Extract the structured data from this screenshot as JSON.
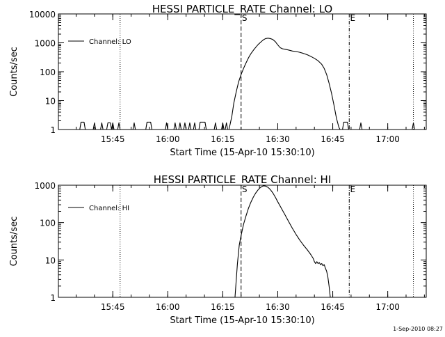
{
  "chart_data": [
    {
      "type": "line",
      "title": "HESSI PARTICLE_RATE Channel: LO",
      "xlabel": "Start Time (15-Apr-10 15:30:10)",
      "ylabel": "Counts/sec",
      "y_scale": "log",
      "xlim": [
        "15:30:10",
        "17:10:30"
      ],
      "ylim": [
        1,
        10000
      ],
      "x_ticks": [
        "15:45",
        "16:00",
        "16:15",
        "16:30",
        "16:45",
        "17:00"
      ],
      "y_ticks": [
        "1",
        "10",
        "100",
        "1000",
        "10000"
      ],
      "legend": "top-left",
      "markers": [
        {
          "label": "",
          "time": "15:47:00",
          "style": "dotted"
        },
        {
          "label": "S",
          "time": "16:20:00",
          "style": "dashed"
        },
        {
          "label": "E",
          "time": "16:49:30",
          "style": "dash-dot"
        },
        {
          "label": "",
          "time": "17:07:00",
          "style": "dotted"
        }
      ],
      "series": [
        {
          "name": "Channel: LO",
          "points": [
            [
              "15:30:10",
              1
            ],
            [
              "15:36:00",
              1
            ],
            [
              "15:36:20",
              1.8
            ],
            [
              "15:37:10",
              1.8
            ],
            [
              "15:37:30",
              1
            ],
            [
              "15:39:40",
              1
            ],
            [
              "15:40:00",
              1.7
            ],
            [
              "15:40:20",
              1
            ],
            [
              "15:41:40",
              1
            ],
            [
              "15:42:00",
              1.7
            ],
            [
              "15:42:20",
              1
            ],
            [
              "15:43:20",
              1
            ],
            [
              "15:43:40",
              1.7
            ],
            [
              "15:44:20",
              1.7
            ],
            [
              "15:44:40",
              1
            ],
            [
              "15:45:00",
              1.7
            ],
            [
              "15:45:20",
              1
            ],
            [
              "15:46:20",
              1
            ],
            [
              "15:46:40",
              1.7
            ],
            [
              "15:47:00",
              1
            ],
            [
              "15:50:30",
              1
            ],
            [
              "15:50:50",
              1.7
            ],
            [
              "15:51:10",
              1
            ],
            [
              "15:54:00",
              1
            ],
            [
              "15:54:20",
              1.8
            ],
            [
              "15:55:20",
              1.8
            ],
            [
              "15:55:40",
              1
            ],
            [
              "15:59:20",
              1
            ],
            [
              "15:59:40",
              1.7
            ],
            [
              "16:00:00",
              1
            ],
            [
              "16:01:40",
              1
            ],
            [
              "16:02:00",
              1.7
            ],
            [
              "16:02:20",
              1
            ],
            [
              "16:03:00",
              1
            ],
            [
              "16:03:20",
              1.7
            ],
            [
              "16:03:40",
              1
            ],
            [
              "16:04:20",
              1
            ],
            [
              "16:04:40",
              1.7
            ],
            [
              "16:05:00",
              1
            ],
            [
              "16:05:40",
              1
            ],
            [
              "16:06:00",
              1.7
            ],
            [
              "16:06:20",
              1
            ],
            [
              "16:07:00",
              1
            ],
            [
              "16:07:20",
              1.7
            ],
            [
              "16:07:40",
              1
            ],
            [
              "16:08:30",
              1
            ],
            [
              "16:08:50",
              1.8
            ],
            [
              "16:10:10",
              1.8
            ],
            [
              "16:10:30",
              1
            ],
            [
              "16:12:40",
              1
            ],
            [
              "16:13:00",
              1.7
            ],
            [
              "16:13:20",
              1
            ],
            [
              "16:14:40",
              1
            ],
            [
              "16:15:00",
              1.7
            ],
            [
              "16:15:20",
              1
            ],
            [
              "16:15:40",
              1
            ],
            [
              "16:16:00",
              1.7
            ],
            [
              "16:16:20",
              1
            ],
            [
              "16:16:40",
              1
            ],
            [
              "16:17:00",
              1.5
            ],
            [
              "16:17:30",
              3
            ],
            [
              "16:18:00",
              8
            ],
            [
              "16:18:40",
              20
            ],
            [
              "16:19:20",
              45
            ],
            [
              "16:20:00",
              80
            ],
            [
              "16:20:40",
              130
            ],
            [
              "16:21:20",
              200
            ],
            [
              "16:22:00",
              300
            ],
            [
              "16:22:40",
              420
            ],
            [
              "16:23:20",
              550
            ],
            [
              "16:24:00",
              700
            ],
            [
              "16:24:40",
              880
            ],
            [
              "16:25:20",
              1050
            ],
            [
              "16:26:00",
              1250
            ],
            [
              "16:26:40",
              1400
            ],
            [
              "16:27:20",
              1450
            ],
            [
              "16:28:00",
              1400
            ],
            [
              "16:28:40",
              1300
            ],
            [
              "16:29:20",
              1100
            ],
            [
              "16:30:00",
              850
            ],
            [
              "16:30:40",
              680
            ],
            [
              "16:31:20",
              620
            ],
            [
              "16:32:00",
              600
            ],
            [
              "16:33:00",
              560
            ],
            [
              "16:34:00",
              520
            ],
            [
              "16:35:00",
              500
            ],
            [
              "16:36:00",
              470
            ],
            [
              "16:37:00",
              430
            ],
            [
              "16:38:00",
              390
            ],
            [
              "16:39:00",
              340
            ],
            [
              "16:40:00",
              290
            ],
            [
              "16:41:00",
              240
            ],
            [
              "16:42:00",
              180
            ],
            [
              "16:42:40",
              130
            ],
            [
              "16:43:20",
              80
            ],
            [
              "16:44:00",
              40
            ],
            [
              "16:44:40",
              18
            ],
            [
              "16:45:20",
              7
            ],
            [
              "16:46:00",
              2.5
            ],
            [
              "16:46:40",
              1.2
            ],
            [
              "16:47:00",
              1
            ],
            [
              "16:47:40",
              1
            ],
            [
              "16:48:00",
              1.8
            ],
            [
              "16:49:00",
              1.8
            ],
            [
              "16:49:20",
              1
            ],
            [
              "16:52:20",
              1
            ],
            [
              "16:52:40",
              1.7
            ],
            [
              "16:53:00",
              1
            ],
            [
              "17:06:40",
              1
            ],
            [
              "17:07:00",
              1.7
            ],
            [
              "17:07:20",
              1
            ],
            [
              "17:10:30",
              1
            ]
          ]
        }
      ]
    },
    {
      "type": "line",
      "title": "HESSI PARTICLE_RATE Channel: HI",
      "xlabel": "Start Time (15-Apr-10 15:30:10)",
      "ylabel": "Counts/sec",
      "y_scale": "log",
      "xlim": [
        "15:30:10",
        "17:10:30"
      ],
      "ylim": [
        1,
        1000
      ],
      "x_ticks": [
        "15:45",
        "16:00",
        "16:15",
        "16:30",
        "16:45",
        "17:00"
      ],
      "y_ticks": [
        "1",
        "10",
        "100",
        "1000"
      ],
      "legend": "top-left",
      "markers": [
        {
          "label": "",
          "time": "15:47:00",
          "style": "dotted"
        },
        {
          "label": "S",
          "time": "16:20:00",
          "style": "dashed"
        },
        {
          "label": "E",
          "time": "16:49:30",
          "style": "dash-dot"
        },
        {
          "label": "",
          "time": "17:07:00",
          "style": "dotted"
        }
      ],
      "series": [
        {
          "name": "Channel: HI",
          "points": [
            [
              "16:18:20",
              1
            ],
            [
              "16:19:00",
              8
            ],
            [
              "16:19:30",
              25
            ],
            [
              "16:20:00",
              45
            ],
            [
              "16:20:40",
              90
            ],
            [
              "16:21:20",
              150
            ],
            [
              "16:22:00",
              240
            ],
            [
              "16:22:40",
              350
            ],
            [
              "16:23:20",
              480
            ],
            [
              "16:24:00",
              620
            ],
            [
              "16:24:40",
              760
            ],
            [
              "16:25:20",
              880
            ],
            [
              "16:26:00",
              960
            ],
            [
              "16:26:40",
              950
            ],
            [
              "16:27:20",
              880
            ],
            [
              "16:28:00",
              760
            ],
            [
              "16:28:40",
              620
            ],
            [
              "16:29:20",
              480
            ],
            [
              "16:30:00",
              360
            ],
            [
              "16:31:00",
              240
            ],
            [
              "16:32:00",
              160
            ],
            [
              "16:33:00",
              105
            ],
            [
              "16:34:00",
              70
            ],
            [
              "16:35:00",
              48
            ],
            [
              "16:36:00",
              34
            ],
            [
              "16:37:00",
              25
            ],
            [
              "16:38:00",
              19
            ],
            [
              "16:39:00",
              14
            ],
            [
              "16:39:40",
              11
            ],
            [
              "16:40:00",
              9
            ],
            [
              "16:40:20",
              8
            ],
            [
              "16:40:40",
              9
            ],
            [
              "16:41:00",
              8
            ],
            [
              "16:41:20",
              8.5
            ],
            [
              "16:41:40",
              7.5
            ],
            [
              "16:42:00",
              8
            ],
            [
              "16:42:20",
              7
            ],
            [
              "16:42:40",
              7.5
            ],
            [
              "16:43:00",
              6
            ],
            [
              "16:43:20",
              5
            ],
            [
              "16:43:40",
              3.5
            ],
            [
              "16:44:00",
              2
            ],
            [
              "16:44:20",
              1
            ]
          ]
        }
      ]
    }
  ],
  "footer": {
    "timestamp": "1-Sep-2010 08:27"
  }
}
